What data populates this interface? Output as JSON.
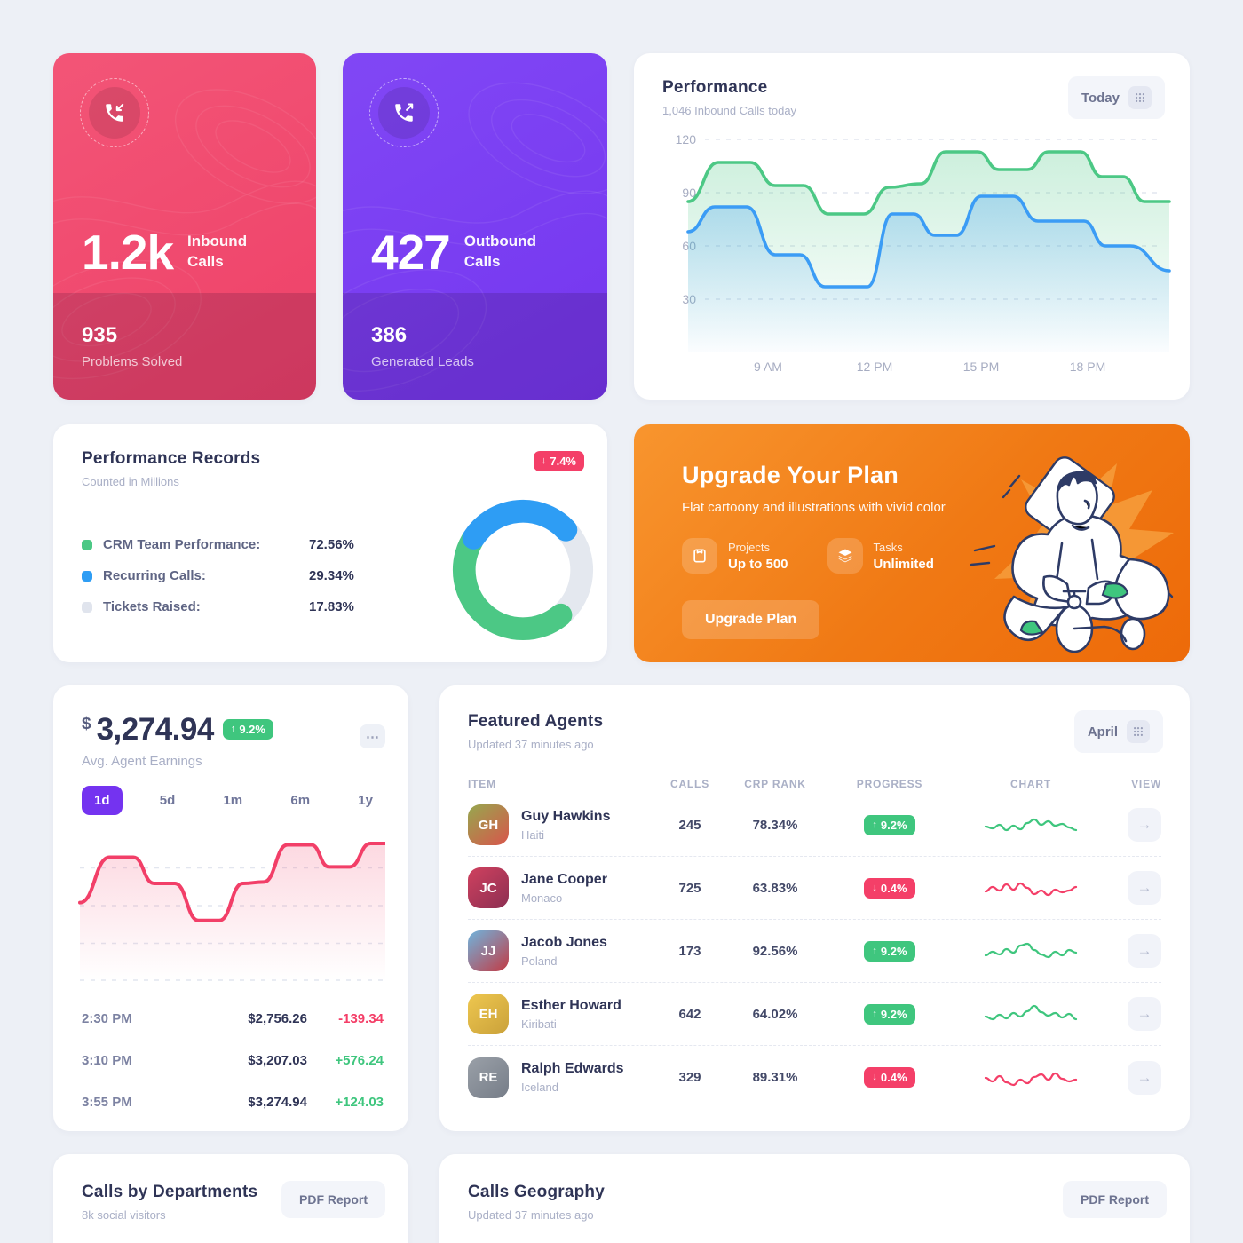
{
  "glyphs": {
    "up_arrow": "↑",
    "down_arrow": "↓",
    "right_arrow": "→",
    "ellipsis": "⋯"
  },
  "inbound": {
    "value": "1.2k",
    "label_line1": "Inbound",
    "label_line2": "Calls",
    "footer_value": "935",
    "footer_label": "Problems Solved"
  },
  "outbound": {
    "value": "427",
    "label_line1": "Outbound",
    "label_line2": "Calls",
    "footer_value": "386",
    "footer_label": "Generated Leads"
  },
  "performance": {
    "title": "Performance",
    "subtitle": "1,046 Inbound Calls today",
    "button_label": "Today"
  },
  "records": {
    "title": "Performance Records",
    "subtitle": "Counted in Millions",
    "badge_value": "7.4%",
    "legend": [
      {
        "label": "CRM Team Performance:",
        "value": "72.56%",
        "color": "#4cc885"
      },
      {
        "label": "Recurring Calls:",
        "value": "29.34%",
        "color": "#2e9df4"
      },
      {
        "label": "Tickets Raised:",
        "value": "17.83%",
        "color": "#e0e4ed"
      }
    ]
  },
  "upgrade": {
    "title": "Upgrade Your Plan",
    "subtitle": "Flat cartoony and illustrations with vivid color",
    "features": [
      {
        "icon": "projects-icon",
        "label": "Projects",
        "value": "Up to 500"
      },
      {
        "icon": "tasks-icon",
        "label": "Tasks",
        "value": "Unlimited"
      }
    ],
    "button_label": "Upgrade Plan"
  },
  "earnings": {
    "currency": "$",
    "value": "3,274.94",
    "badge_value": "9.2%",
    "subtitle": "Avg. Agent Earnings",
    "tabs": [
      "1d",
      "5d",
      "1m",
      "6m",
      "1y"
    ],
    "active_index": 0,
    "rows": [
      {
        "time": "2:30 PM",
        "amount": "$2,756.26",
        "delta": "-139.34",
        "dir": "down"
      },
      {
        "time": "3:10 PM",
        "amount": "$3,207.03",
        "delta": "+576.24",
        "dir": "up"
      },
      {
        "time": "3:55 PM",
        "amount": "$3,274.94",
        "delta": "+124.03",
        "dir": "up"
      }
    ]
  },
  "agents": {
    "title": "Featured Agents",
    "subtitle": "Updated 37 minutes ago",
    "button_label": "April",
    "columns": [
      "ITEM",
      "CALLS",
      "CRP RANK",
      "PROGRESS",
      "CHART",
      "VIEW"
    ],
    "rows": [
      {
        "name": "Guy Hawkins",
        "country": "Haiti",
        "initials": "GH",
        "avatar_colors": [
          "#96a84e",
          "#d8554b"
        ],
        "calls": "245",
        "crp_rank": "78.34%",
        "progress": "9.2%",
        "dir": "up"
      },
      {
        "name": "Jane Cooper",
        "country": "Monaco",
        "initials": "JC",
        "avatar_colors": [
          "#d0415f",
          "#8c2f52"
        ],
        "calls": "725",
        "crp_rank": "63.83%",
        "progress": "0.4%",
        "dir": "down"
      },
      {
        "name": "Jacob Jones",
        "country": "Poland",
        "initials": "JJ",
        "avatar_colors": [
          "#6fb4dd",
          "#c23b45"
        ],
        "calls": "173",
        "crp_rank": "92.56%",
        "progress": "9.2%",
        "dir": "up"
      },
      {
        "name": "Esther Howard",
        "country": "Kiribati",
        "initials": "EH",
        "avatar_colors": [
          "#eec74f",
          "#caa13a"
        ],
        "calls": "642",
        "crp_rank": "64.02%",
        "progress": "9.2%",
        "dir": "up"
      },
      {
        "name": "Ralph Edwards",
        "country": "Iceland",
        "initials": "RE",
        "avatar_colors": [
          "#9aa0a8",
          "#767d88"
        ],
        "calls": "329",
        "crp_rank": "89.31%",
        "progress": "0.4%",
        "dir": "down"
      }
    ]
  },
  "departments": {
    "title": "Calls by Departments",
    "subtitle": "8k social visitors",
    "button_label": "PDF Report"
  },
  "geography": {
    "title": "Calls Geography",
    "subtitle": "Updated 37 minutes ago",
    "button_label": "PDF Report"
  },
  "chart_data": [
    {
      "id": "performance-lines",
      "type": "area",
      "title": "Performance",
      "subtitle": "1,046 Inbound Calls today",
      "ylim": [
        0,
        130
      ],
      "yticks": [
        30,
        60,
        90,
        120
      ],
      "xtick_hours": [
        9,
        12,
        15,
        18
      ],
      "xticklabels": [
        "9 AM",
        "12 PM",
        "15 PM",
        "18 PM"
      ],
      "grid": "dashed-horizontal",
      "legend_position": "none",
      "series": [
        {
          "name": "inbound-green",
          "color": "#4cc885",
          "points": [
            [
              6.75,
              85
            ],
            [
              7.6,
              107
            ],
            [
              8.5,
              107
            ],
            [
              9.2,
              94
            ],
            [
              10,
              94
            ],
            [
              10.7,
              78
            ],
            [
              11.7,
              78
            ],
            [
              12.4,
              93
            ],
            [
              13.3,
              95
            ],
            [
              14,
              113
            ],
            [
              14.9,
              113
            ],
            [
              15.5,
              103
            ],
            [
              16.3,
              103
            ],
            [
              16.9,
              113
            ],
            [
              17.8,
              113
            ],
            [
              18.4,
              99
            ],
            [
              19,
              99
            ],
            [
              19.6,
              85
            ],
            [
              20.3,
              85
            ]
          ]
        },
        {
          "name": "recurring-blue",
          "color": "#3b9cf5",
          "points": [
            [
              6.75,
              68
            ],
            [
              7.5,
              82
            ],
            [
              8.4,
              82
            ],
            [
              9.2,
              55
            ],
            [
              9.9,
              55
            ],
            [
              10.6,
              37
            ],
            [
              11.8,
              37
            ],
            [
              12.5,
              78
            ],
            [
              13.1,
              78
            ],
            [
              13.7,
              66
            ],
            [
              14.3,
              66
            ],
            [
              15,
              88
            ],
            [
              15.9,
              88
            ],
            [
              16.6,
              74
            ],
            [
              17.9,
              74
            ],
            [
              18.5,
              60
            ],
            [
              19.2,
              60
            ],
            [
              20.3,
              46
            ]
          ]
        }
      ]
    },
    {
      "id": "records-donut",
      "type": "pie",
      "title": "Performance Records",
      "segments": [
        {
          "label": "CRM Team Performance",
          "value_label": "72.56%",
          "color": "#4cc885",
          "arc_deg": [
            140,
            300
          ],
          "background": false
        },
        {
          "label": "Recurring Calls",
          "value_label": "29.34%",
          "color": "#2e9df4",
          "arc_deg": [
            303,
            407
          ],
          "background": false
        },
        {
          "label": "Tickets Raised",
          "value_label": "17.83%",
          "color": "#e4e8ef",
          "arc_deg": [
            0,
            360
          ],
          "background": true
        }
      ]
    },
    {
      "id": "earnings-area",
      "type": "area",
      "title": "Avg. Agent Earnings (1d)",
      "color": "#f23f68",
      "ylim": [
        0,
        110
      ],
      "grid": "dashed-horizontal",
      "points": [
        [
          0,
          57
        ],
        [
          1,
          90
        ],
        [
          1.8,
          90
        ],
        [
          2.5,
          71
        ],
        [
          3.2,
          71
        ],
        [
          4,
          44
        ],
        [
          4.7,
          44
        ],
        [
          5.5,
          71
        ],
        [
          6.2,
          72
        ],
        [
          7,
          99
        ],
        [
          7.8,
          99
        ],
        [
          8.4,
          83
        ],
        [
          9.1,
          83
        ],
        [
          9.8,
          100
        ],
        [
          10.3,
          100
        ]
      ]
    },
    {
      "id": "agent-sparklines",
      "type": "line",
      "rows": [
        {
          "agent": "Guy Hawkins",
          "color": "#3fc67e",
          "values": [
            13,
            11,
            15,
            9,
            14,
            10,
            17,
            21,
            15,
            19,
            14,
            16,
            12,
            9
          ]
        },
        {
          "agent": "Jane Cooper",
          "color": "#f43f68",
          "values": [
            11,
            16,
            12,
            19,
            13,
            20,
            15,
            8,
            12,
            7,
            13,
            10,
            12,
            16
          ]
        },
        {
          "agent": "Jacob Jones",
          "color": "#3fc67e",
          "values": [
            10,
            14,
            11,
            17,
            13,
            21,
            23,
            16,
            11,
            8,
            14,
            10,
            16,
            13
          ]
        },
        {
          "agent": "Esther Howard",
          "color": "#3fc67e",
          "values": [
            12,
            9,
            14,
            10,
            16,
            12,
            18,
            24,
            17,
            13,
            16,
            11,
            15,
            9
          ]
        },
        {
          "agent": "Ralph Edwards",
          "color": "#f43f68",
          "values": [
            15,
            11,
            17,
            10,
            7,
            13,
            9,
            16,
            19,
            13,
            20,
            14,
            11,
            13
          ]
        }
      ]
    }
  ]
}
